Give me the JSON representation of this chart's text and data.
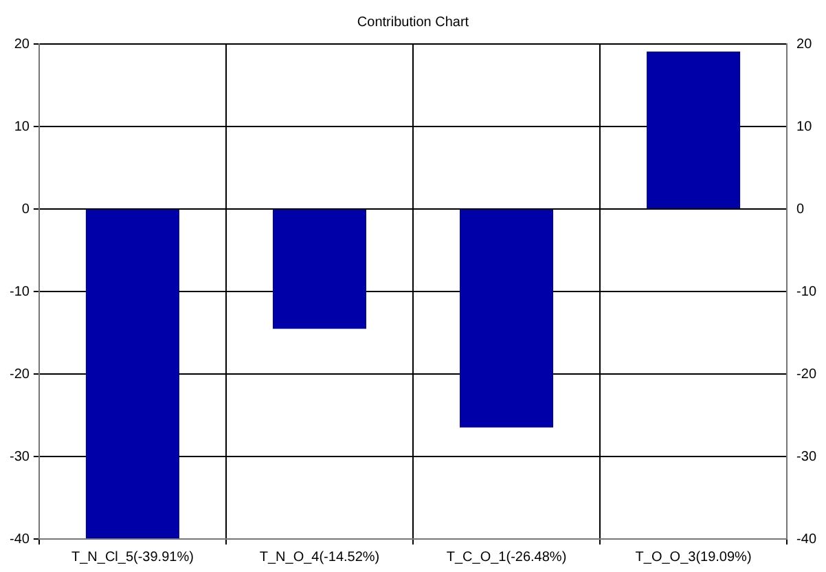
{
  "chart_data": {
    "type": "bar",
    "title": "Contribution Chart",
    "categories": [
      "T_N_Cl_5(-39.91%)",
      "T_N_O_4(-14.52%)",
      "T_C_O_1(-26.48%)",
      "T_O_O_3(19.09%)"
    ],
    "values": [
      -39.91,
      -14.52,
      -26.48,
      19.09
    ],
    "color": "#0000a8",
    "ylim": [
      -40,
      20
    ],
    "yticks": [
      -40,
      -30,
      -20,
      -10,
      0,
      10,
      20
    ],
    "y2lim": [
      -40,
      20
    ],
    "y2ticks": [
      -40,
      -30,
      -20,
      -10,
      0,
      10,
      20
    ],
    "grid": true,
    "legend": false
  }
}
